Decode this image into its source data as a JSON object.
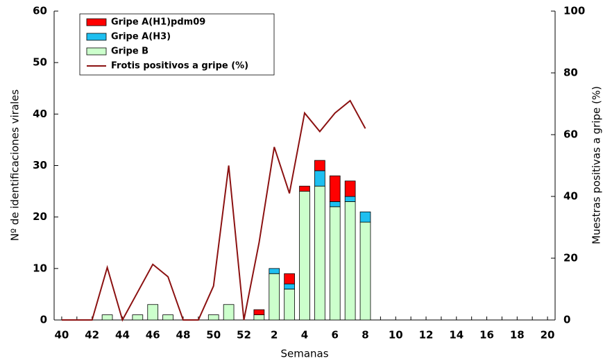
{
  "chart_data": {
    "type": "bar",
    "x_label": "Semanas",
    "y_label": "Nº de identificaciones virales",
    "y2_label": "Muestras positivas a gripe (%)",
    "categories": [
      "40",
      null,
      "42",
      null,
      "44",
      null,
      "46",
      null,
      "48",
      null,
      "50",
      null,
      "52",
      null,
      "2",
      null,
      "4",
      null,
      "6",
      null,
      "8",
      null,
      "10",
      null,
      "12",
      null,
      "14",
      null,
      "16",
      null,
      "18",
      null,
      "20"
    ],
    "series": [
      {
        "name": "Gripe A(H1)pdm09",
        "color": "#ff0000",
        "values": [
          0,
          0,
          0,
          0,
          0,
          0,
          0,
          0,
          0,
          0,
          0,
          0,
          0,
          1,
          0,
          2,
          1,
          2,
          5,
          3,
          0,
          null,
          null,
          null,
          null,
          null,
          null,
          null,
          null,
          null,
          null,
          null,
          null
        ]
      },
      {
        "name": "Gripe A(H3)",
        "color": "#1ebff0",
        "values": [
          0,
          0,
          0,
          0,
          0,
          0,
          0,
          0,
          0,
          0,
          0,
          0,
          0,
          0,
          1,
          1,
          0,
          3,
          1,
          1,
          2,
          null,
          null,
          null,
          null,
          null,
          null,
          null,
          null,
          null,
          null,
          null,
          null
        ]
      },
      {
        "name": "Gripe B",
        "color": "#ccffcc",
        "values": [
          0,
          0,
          0,
          1,
          0,
          1,
          3,
          1,
          0,
          0,
          1,
          3,
          0,
          1,
          9,
          6,
          25,
          26,
          22,
          23,
          19,
          null,
          null,
          null,
          null,
          null,
          null,
          null,
          null,
          null,
          null,
          null,
          null
        ]
      },
      {
        "name": "Frotis positivos a gripe (%)",
        "type": "line",
        "axis": "y2",
        "color": "#8b1111",
        "values": [
          0,
          0,
          0,
          17,
          0,
          9,
          18,
          14,
          0,
          0,
          11,
          50,
          0,
          25,
          56,
          41,
          67,
          61,
          67,
          71,
          62,
          null,
          null,
          null,
          null,
          null,
          null,
          null,
          null,
          null,
          null,
          null,
          null
        ]
      }
    ],
    "ylim": [
      0,
      60
    ],
    "yticks": [
      0,
      10,
      20,
      30,
      40,
      50,
      60
    ],
    "y2lim": [
      0,
      100
    ],
    "y2ticks": [
      0,
      20,
      40,
      60,
      80,
      100
    ],
    "legend": "top-left",
    "grid": false
  }
}
